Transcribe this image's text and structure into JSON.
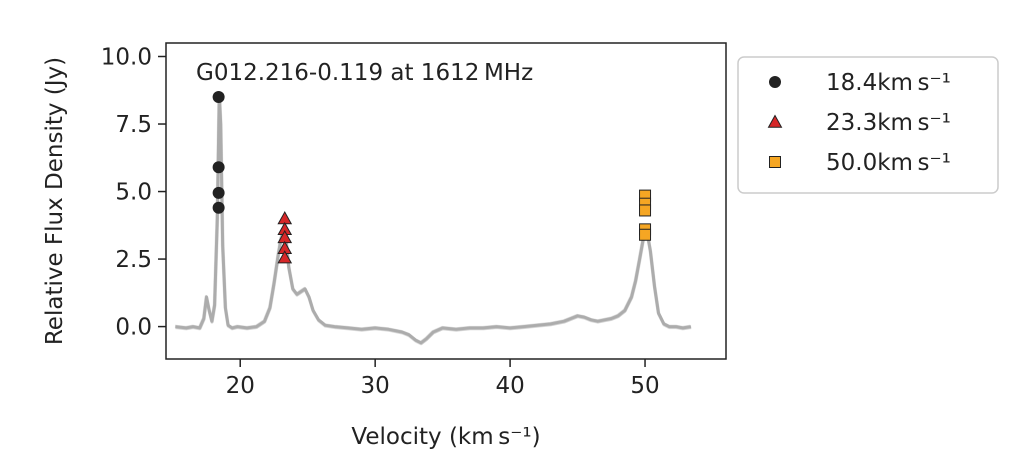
{
  "chart_data": {
    "type": "scatter",
    "title": "G012.216-0.119 at 1612 MHz",
    "xlabel": "Velocity (km s⁻¹)",
    "ylabel": "Relative Flux Density (Jy)",
    "xlim": [
      14.5,
      56
    ],
    "ylim": [
      -1.2,
      10.5
    ],
    "xticks": [
      20,
      30,
      40,
      50
    ],
    "yticks": [
      0.0,
      2.5,
      5.0,
      7.5,
      10.0
    ],
    "xtick_labels": [
      "20",
      "30",
      "40",
      "50"
    ],
    "ytick_labels": [
      "0.0",
      "2.5",
      "5.0",
      "7.5",
      "10.0"
    ],
    "grid": false,
    "legend_position": "outside-right",
    "spectrum": {
      "color": "#a8a8a8",
      "x": [
        15.2,
        16,
        16.5,
        17,
        17.3,
        17.5,
        17.7,
        17.9,
        18.1,
        18.3,
        18.45,
        18.55,
        18.7,
        18.9,
        19.1,
        19.4,
        19.8,
        20.5,
        21.2,
        21.8,
        22.2,
        22.5,
        22.8,
        23.0,
        23.2,
        23.4,
        23.6,
        23.9,
        24.2,
        24.5,
        24.8,
        25.1,
        25.4,
        25.8,
        26.3,
        27,
        28,
        29,
        30,
        31,
        32,
        32.5,
        33,
        33.4,
        33.8,
        34.3,
        35,
        36,
        37,
        38,
        39,
        40,
        41,
        42,
        43,
        44,
        44.5,
        45,
        45.5,
        46,
        46.5,
        47,
        47.5,
        48,
        48.5,
        49,
        49.3,
        49.6,
        49.85,
        50.0,
        50.15,
        50.4,
        50.7,
        51,
        51.4,
        51.8,
        52.3,
        52.8,
        53.4
      ],
      "y": [
        0.0,
        -0.05,
        0.0,
        -0.05,
        0.3,
        1.1,
        0.6,
        0.2,
        0.8,
        4.0,
        8.6,
        7.5,
        3.0,
        0.7,
        0.05,
        -0.05,
        0.0,
        -0.05,
        0.0,
        0.2,
        0.7,
        1.6,
        2.6,
        3.2,
        3.6,
        3.2,
        2.2,
        1.4,
        1.2,
        1.3,
        1.4,
        1.1,
        0.6,
        0.25,
        0.05,
        0.0,
        -0.05,
        -0.1,
        -0.05,
        -0.1,
        -0.2,
        -0.3,
        -0.5,
        -0.6,
        -0.45,
        -0.2,
        -0.05,
        -0.1,
        -0.05,
        -0.05,
        0.0,
        -0.05,
        0.0,
        0.05,
        0.1,
        0.2,
        0.3,
        0.4,
        0.35,
        0.25,
        0.2,
        0.25,
        0.3,
        0.4,
        0.6,
        1.1,
        1.7,
        2.5,
        3.2,
        3.6,
        3.5,
        2.8,
        1.5,
        0.5,
        0.1,
        0.0,
        0.0,
        -0.05,
        0.0
      ]
    },
    "series": [
      {
        "name": "18.4km s⁻¹",
        "marker": "circle",
        "color": "#222222",
        "x": [
          18.4,
          18.4,
          18.4,
          18.4
        ],
        "y": [
          8.5,
          5.9,
          4.95,
          4.4
        ]
      },
      {
        "name": "23.3km s⁻¹",
        "marker": "triangle",
        "color": "#d62728",
        "x": [
          23.3,
          23.3,
          23.3,
          23.3,
          23.3
        ],
        "y": [
          4.0,
          3.6,
          3.3,
          2.9,
          2.55
        ]
      },
      {
        "name": "50.0km s⁻¹",
        "marker": "square",
        "color": "#f5a623",
        "x": [
          50.0,
          50.0,
          50.0,
          50.0,
          50.0
        ],
        "y": [
          4.85,
          4.55,
          4.3,
          3.6,
          3.4
        ]
      }
    ]
  }
}
